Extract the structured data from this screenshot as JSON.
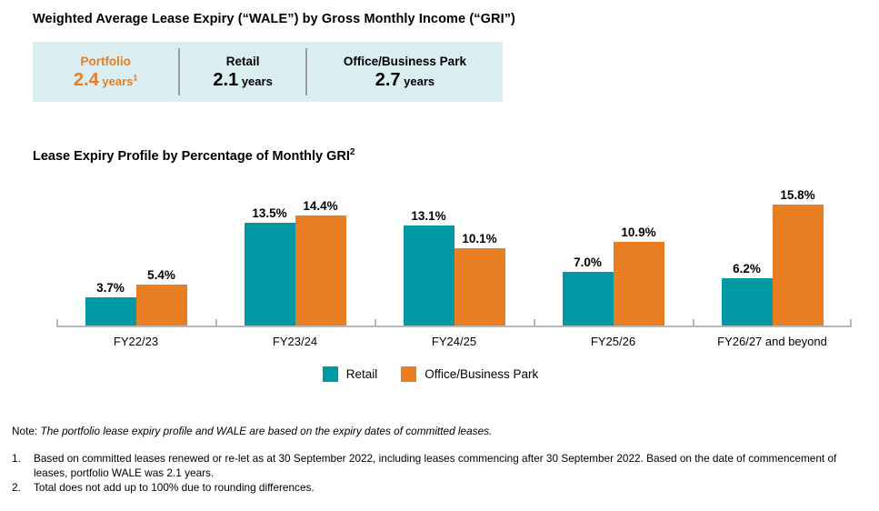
{
  "header": {
    "title": "Weighted Average Lease Expiry (“WALE”) by Gross Monthly Income (“GRI”)"
  },
  "summary": {
    "items": [
      {
        "label": "Portfolio",
        "value": "2.4",
        "unit": "years",
        "footnote_ref": "1"
      },
      {
        "label": "Retail",
        "value": "2.1",
        "unit": "years",
        "footnote_ref": ""
      },
      {
        "label": "Office/Business Park",
        "value": "2.7",
        "unit": "years",
        "footnote_ref": ""
      }
    ],
    "box_background": "#DAEDF0",
    "highlight_color": "#E87D22"
  },
  "chart_section": {
    "title": "Lease Expiry Profile by Percentage of Monthly GRI",
    "title_superscript": "2"
  },
  "chart_data": {
    "type": "bar",
    "title": "Lease Expiry Profile by Percentage of Monthly GRI",
    "categories": [
      "FY22/23",
      "FY23/24",
      "FY24/25",
      "FY25/26",
      "FY26/27 and beyond"
    ],
    "series": [
      {
        "name": "Retail",
        "color": "#0098A3",
        "values": [
          3.7,
          13.5,
          13.1,
          7.0,
          6.2
        ]
      },
      {
        "name": "Office/Business Park",
        "color": "#E87D22",
        "values": [
          5.4,
          14.4,
          10.1,
          10.9,
          15.8
        ]
      }
    ],
    "value_suffix": "%",
    "xlabel": "",
    "ylabel": "",
    "ylim": [
      0,
      17
    ],
    "grid": false,
    "data_labels": true,
    "legend_position": "bottom",
    "axis_color": "#B7B7B7"
  },
  "notes": {
    "prefix": "Note:",
    "text": "The portfolio lease expiry profile and WALE are based on the expiry dates of committed leases.",
    "footnotes": [
      "Based on committed leases renewed or re-let as at 30 September 2022, including leases commencing after 30 September 2022. Based on the date of commencement of leases, portfolio WALE was 2.1 years.",
      "Total does not add up to 100% due to rounding differences."
    ]
  }
}
